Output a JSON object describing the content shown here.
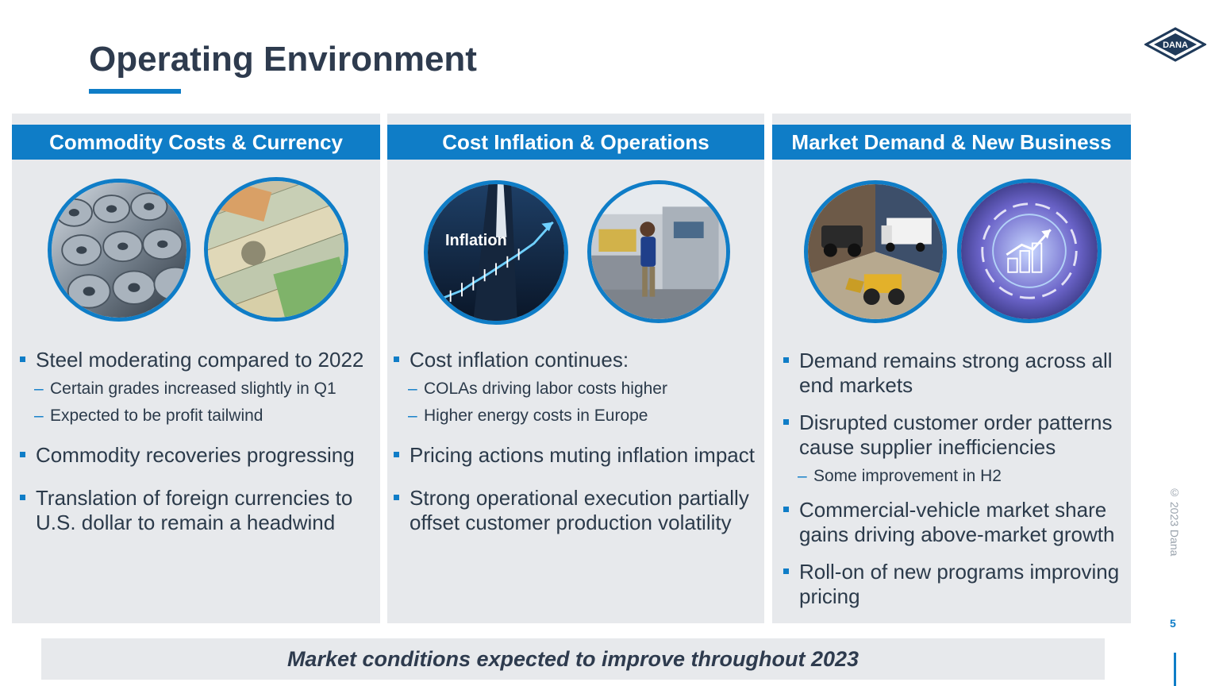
{
  "slide": {
    "title": "Operating Environment",
    "footer": "Market conditions expected to improve throughout 2023",
    "copyright": "© 2023 Dana",
    "page_number": "5",
    "logo_text": "DANA"
  },
  "panels": [
    {
      "header": "Commodity Costs & Currency",
      "images": [
        "steel-coils-image",
        "currency-banknotes-image"
      ],
      "bullets": [
        {
          "text": "Steel moderating compared to 2022",
          "subs": [
            "Certain grades increased slightly in Q1",
            "Expected to be profit tailwind"
          ]
        },
        {
          "text": "Commodity recoveries progressing",
          "subs": []
        },
        {
          "text": "Translation of foreign currencies to U.S. dollar to remain a headwind",
          "subs": []
        }
      ]
    },
    {
      "header": "Cost Inflation & Operations",
      "images": [
        "inflation-chart-image",
        "factory-worker-image"
      ],
      "image_caption": "Inflation",
      "bullets": [
        {
          "text": "Cost inflation continues:",
          "subs": [
            "COLAs driving labor costs higher",
            "Higher energy costs in Europe"
          ]
        },
        {
          "text": "Pricing actions muting inflation impact",
          "subs": []
        },
        {
          "text": "Strong operational execution partially offset customer production volatility",
          "subs": []
        }
      ]
    },
    {
      "header": "Market Demand & New Business",
      "images": [
        "vehicles-collage-image",
        "growth-digital-image"
      ],
      "bullets": [
        {
          "text": "Demand remains strong across all end markets",
          "subs": []
        },
        {
          "text": "Disrupted customer order patterns cause supplier inefficiencies",
          "subs": [
            "Some improvement in H2"
          ]
        },
        {
          "text": "Commercial-vehicle market share gains driving above-market growth",
          "subs": []
        },
        {
          "text": "Roll-on of new programs improving pricing",
          "subs": []
        }
      ]
    }
  ],
  "colors": {
    "accent": "#0f7dc7",
    "panel_bg": "#e7e9ec",
    "title": "#2e3b4e"
  }
}
